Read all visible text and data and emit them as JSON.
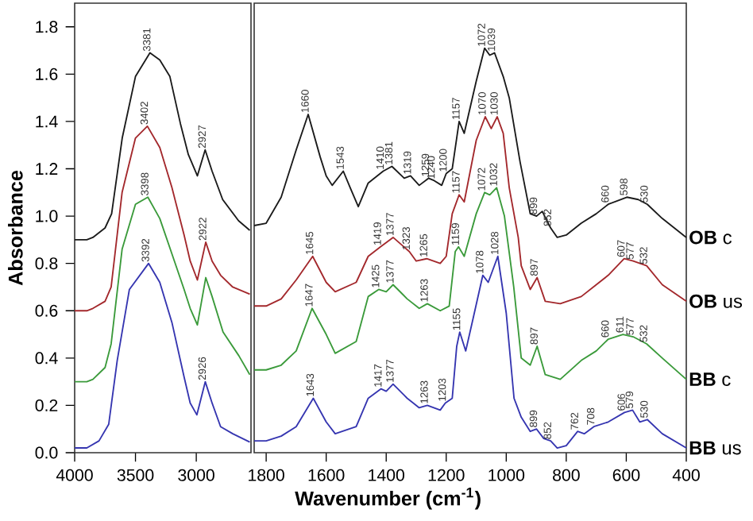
{
  "chart_data": [
    {
      "type": "line",
      "ylabel": "Absorbance",
      "xlim": [
        4000,
        2550
      ],
      "xticks": [
        4000,
        3500,
        3000
      ],
      "ylim": [
        0,
        1.9
      ],
      "yticks": [
        {
          "value": 0,
          "label": "0.0"
        },
        0.2,
        0.4,
        0.6,
        0.8,
        {
          "value": 1,
          "label": "1.0"
        },
        1.2,
        1.4,
        1.6,
        1.8
      ],
      "series": [
        {
          "color": "#1a1a1a",
          "x": [
            4000,
            3900,
            3850,
            3750,
            3696,
            3609,
            3500,
            3381,
            3300,
            3217,
            3130,
            3065,
            2991,
            2927,
            2870,
            2783,
            2652,
            2560
          ],
          "values": [
            0.9,
            0.9,
            0.91,
            0.95,
            1.01,
            1.33,
            1.59,
            1.69,
            1.66,
            1.59,
            1.39,
            1.26,
            1.17,
            1.28,
            1.19,
            1.07,
            0.98,
            0.94
          ]
        },
        {
          "color": "#a3282c",
          "x": [
            4000,
            3900,
            3850,
            3750,
            3700,
            3610,
            3500,
            3402,
            3300,
            3200,
            3100,
            3050,
            2991,
            2922,
            2870,
            2800,
            2700,
            2560
          ],
          "values": [
            0.6,
            0.6,
            0.61,
            0.64,
            0.7,
            1.1,
            1.33,
            1.38,
            1.29,
            1.12,
            0.92,
            0.81,
            0.73,
            0.89,
            0.81,
            0.75,
            0.7,
            0.67
          ]
        },
        {
          "color": "#3a9a3a",
          "x": [
            4000,
            3900,
            3850,
            3750,
            3700,
            3610,
            3500,
            3398,
            3300,
            3200,
            3100,
            3050,
            2991,
            2922,
            2870,
            2780,
            2650,
            2560
          ],
          "values": [
            0.3,
            0.3,
            0.31,
            0.36,
            0.46,
            0.86,
            1.05,
            1.08,
            0.99,
            0.84,
            0.69,
            0.61,
            0.54,
            0.74,
            0.66,
            0.51,
            0.41,
            0.33
          ]
        },
        {
          "color": "#3535b0",
          "x": [
            4000,
            3900,
            3800,
            3720,
            3650,
            3550,
            3392,
            3300,
            3200,
            3100,
            3050,
            2995,
            2926,
            2870,
            2800,
            2700,
            2560
          ],
          "values": [
            0.02,
            0.02,
            0.05,
            0.12,
            0.39,
            0.69,
            0.8,
            0.72,
            0.55,
            0.32,
            0.21,
            0.16,
            0.3,
            0.21,
            0.11,
            0.08,
            0.045
          ]
        }
      ],
      "annotations": [
        {
          "text": "3381",
          "x": 3381,
          "y": 1.69
        },
        {
          "text": "2927",
          "x": 2927,
          "y": 1.28
        },
        {
          "text": "3402",
          "x": 3402,
          "y": 1.38
        },
        {
          "text": "2922",
          "x": 2922,
          "y": 0.89
        },
        {
          "text": "3398",
          "x": 3398,
          "y": 1.08
        },
        {
          "text": "3392",
          "x": 3392,
          "y": 0.8
        },
        {
          "text": "2926",
          "x": 2926,
          "y": 0.3
        }
      ]
    },
    {
      "type": "line",
      "xlabel": "Wavenumber (cm$^{-1}$)",
      "xlim": [
        1840,
        400
      ],
      "xticks": [
        1800,
        1600,
        1400,
        1200,
        1000,
        800,
        600,
        400
      ],
      "ylim": [
        0,
        1.9
      ],
      "tick_labels": "x",
      "series": [
        {
          "name": "**OB** c",
          "color": "#1a1a1a",
          "x": [
            1840,
            1800,
            1750,
            1700,
            1660,
            1620,
            1600,
            1580,
            1543,
            1520,
            1493,
            1460,
            1410,
            1381,
            1340,
            1319,
            1290,
            1259,
            1240,
            1215,
            1200,
            1180,
            1157,
            1140,
            1100,
            1072,
            1055,
            1039,
            1010,
            990,
            954,
            920,
            899,
            880,
            852,
            830,
            800,
            750,
            700,
            660,
            598,
            560,
            530,
            480,
            400
          ],
          "values": [
            0.96,
            0.97,
            1.08,
            1.28,
            1.43,
            1.25,
            1.17,
            1.13,
            1.19,
            1.12,
            1.04,
            1.14,
            1.19,
            1.21,
            1.16,
            1.17,
            1.13,
            1.16,
            1.15,
            1.13,
            1.18,
            1.2,
            1.4,
            1.35,
            1.57,
            1.71,
            1.68,
            1.69,
            1.59,
            1.5,
            1.23,
            1.01,
            1.0,
            1.02,
            0.95,
            0.91,
            0.92,
            0.97,
            1.01,
            1.05,
            1.08,
            1.07,
            1.05,
            0.99,
            0.91
          ]
        },
        {
          "name": "**OB** us",
          "color": "#a3282c",
          "x": [
            1840,
            1800,
            1750,
            1700,
            1645,
            1600,
            1570,
            1500,
            1460,
            1419,
            1377,
            1323,
            1300,
            1265,
            1220,
            1200,
            1180,
            1157,
            1140,
            1100,
            1070,
            1050,
            1030,
            1010,
            990,
            960,
            950,
            920,
            897,
            870,
            820,
            750,
            700,
            660,
            607,
            577,
            532,
            480,
            400
          ],
          "values": [
            0.62,
            0.62,
            0.65,
            0.73,
            0.83,
            0.72,
            0.68,
            0.72,
            0.83,
            0.87,
            0.91,
            0.85,
            0.81,
            0.82,
            0.8,
            0.83,
            1.01,
            1.09,
            1.06,
            1.32,
            1.42,
            1.37,
            1.42,
            1.35,
            1.12,
            0.91,
            0.79,
            0.69,
            0.74,
            0.64,
            0.63,
            0.66,
            0.71,
            0.75,
            0.82,
            0.81,
            0.79,
            0.71,
            0.64
          ]
        },
        {
          "name": "**BB** c",
          "color": "#3a9a3a",
          "x": [
            1840,
            1800,
            1750,
            1700,
            1647,
            1600,
            1570,
            1500,
            1460,
            1425,
            1400,
            1377,
            1330,
            1290,
            1263,
            1220,
            1190,
            1170,
            1159,
            1140,
            1100,
            1072,
            1055,
            1032,
            1006,
            975,
            950,
            920,
            897,
            870,
            820,
            750,
            700,
            660,
            611,
            577,
            532,
            480,
            400
          ],
          "values": [
            0.35,
            0.35,
            0.37,
            0.43,
            0.61,
            0.5,
            0.42,
            0.47,
            0.66,
            0.69,
            0.68,
            0.71,
            0.65,
            0.61,
            0.63,
            0.6,
            0.62,
            0.85,
            0.87,
            0.83,
            1.01,
            1.1,
            1.09,
            1.12,
            1.0,
            0.7,
            0.4,
            0.37,
            0.45,
            0.33,
            0.31,
            0.39,
            0.43,
            0.48,
            0.5,
            0.49,
            0.46,
            0.4,
            0.31
          ]
        },
        {
          "name": "**BB** us",
          "color": "#3535b0",
          "x": [
            1840,
            1800,
            1750,
            1700,
            1643,
            1600,
            1570,
            1500,
            1460,
            1417,
            1400,
            1377,
            1330,
            1290,
            1263,
            1220,
            1203,
            1180,
            1165,
            1155,
            1135,
            1110,
            1078,
            1060,
            1028,
            1000,
            974,
            950,
            920,
            899,
            875,
            852,
            830,
            800,
            762,
            740,
            708,
            660,
            606,
            579,
            555,
            530,
            480,
            400
          ],
          "values": [
            0.05,
            0.05,
            0.07,
            0.11,
            0.23,
            0.13,
            0.08,
            0.11,
            0.23,
            0.27,
            0.26,
            0.29,
            0.23,
            0.19,
            0.2,
            0.18,
            0.21,
            0.23,
            0.45,
            0.51,
            0.43,
            0.57,
            0.75,
            0.72,
            0.83,
            0.59,
            0.23,
            0.15,
            0.09,
            0.1,
            0.06,
            0.05,
            0.02,
            0.03,
            0.09,
            0.08,
            0.11,
            0.13,
            0.17,
            0.18,
            0.13,
            0.14,
            0.08,
            0.02
          ]
        }
      ],
      "annotations": [
        {
          "text": "1660",
          "x": 1660,
          "y": 1.43
        },
        {
          "text": "1543",
          "x": 1543,
          "y": 1.19
        },
        {
          "text": "1410",
          "x": 1410,
          "y": 1.19
        },
        {
          "text": "1381",
          "x": 1381,
          "y": 1.21
        },
        {
          "text": "1319",
          "x": 1319,
          "y": 1.17
        },
        {
          "text": "1259",
          "x": 1259,
          "y": 1.16
        },
        {
          "text": "1240",
          "x": 1240,
          "y": 1.15
        },
        {
          "text": "1200",
          "x": 1200,
          "y": 1.18
        },
        {
          "text": "1157",
          "x": 1157,
          "y": 1.4
        },
        {
          "text": "1072",
          "x": 1072,
          "y": 1.71
        },
        {
          "text": "1039",
          "x": 1039,
          "y": 1.69
        },
        {
          "text": "899",
          "x": 899,
          "y": 1.0
        },
        {
          "text": "852",
          "x": 852,
          "y": 0.95
        },
        {
          "text": "660",
          "x": 660,
          "y": 1.05
        },
        {
          "text": "598",
          "x": 598,
          "y": 1.08
        },
        {
          "text": "530",
          "x": 530,
          "y": 1.05
        },
        {
          "text": "1645",
          "x": 1645,
          "y": 0.83
        },
        {
          "text": "1419",
          "x": 1419,
          "y": 0.87
        },
        {
          "text": "1377",
          "x": 1377,
          "y": 0.91
        },
        {
          "text": "1323",
          "x": 1323,
          "y": 0.85
        },
        {
          "text": "1265",
          "x": 1265,
          "y": 0.82
        },
        {
          "text": "1157",
          "x": 1157,
          "y": 1.09
        },
        {
          "text": "1070",
          "x": 1070,
          "y": 1.42
        },
        {
          "text": "1030",
          "x": 1030,
          "y": 1.42
        },
        {
          "text": "897",
          "x": 897,
          "y": 0.74
        },
        {
          "text": "607",
          "x": 607,
          "y": 0.82
        },
        {
          "text": "577",
          "x": 577,
          "y": 0.81
        },
        {
          "text": "532",
          "x": 532,
          "y": 0.79
        },
        {
          "text": "1647",
          "x": 1647,
          "y": 0.61
        },
        {
          "text": "1425",
          "x": 1425,
          "y": 0.69
        },
        {
          "text": "1377",
          "x": 1377,
          "y": 0.71
        },
        {
          "text": "1263",
          "x": 1263,
          "y": 0.63
        },
        {
          "text": "1159",
          "x": 1159,
          "y": 0.87
        },
        {
          "text": "1072",
          "x": 1072,
          "y": 1.1
        },
        {
          "text": "1032",
          "x": 1032,
          "y": 1.12
        },
        {
          "text": "897",
          "x": 897,
          "y": 0.45
        },
        {
          "text": "660",
          "x": 660,
          "y": 0.48
        },
        {
          "text": "611",
          "x": 611,
          "y": 0.5
        },
        {
          "text": "577",
          "x": 577,
          "y": 0.49
        },
        {
          "text": "532",
          "x": 532,
          "y": 0.46
        },
        {
          "text": "1643",
          "x": 1643,
          "y": 0.23
        },
        {
          "text": "1417",
          "x": 1417,
          "y": 0.27
        },
        {
          "text": "1377",
          "x": 1377,
          "y": 0.29
        },
        {
          "text": "1263",
          "x": 1263,
          "y": 0.2
        },
        {
          "text": "1203",
          "x": 1203,
          "y": 0.21
        },
        {
          "text": "1155",
          "x": 1155,
          "y": 0.51
        },
        {
          "text": "1078",
          "x": 1078,
          "y": 0.75
        },
        {
          "text": "1028",
          "x": 1028,
          "y": 0.83
        },
        {
          "text": "899",
          "x": 899,
          "y": 0.1
        },
        {
          "text": "852",
          "x": 852,
          "y": 0.05
        },
        {
          "text": "762",
          "x": 762,
          "y": 0.09
        },
        {
          "text": "708",
          "x": 708,
          "y": 0.11
        },
        {
          "text": "606",
          "x": 606,
          "y": 0.17
        },
        {
          "text": "579",
          "x": 579,
          "y": 0.18
        },
        {
          "text": "530",
          "x": 530,
          "y": 0.14
        }
      ]
    }
  ]
}
